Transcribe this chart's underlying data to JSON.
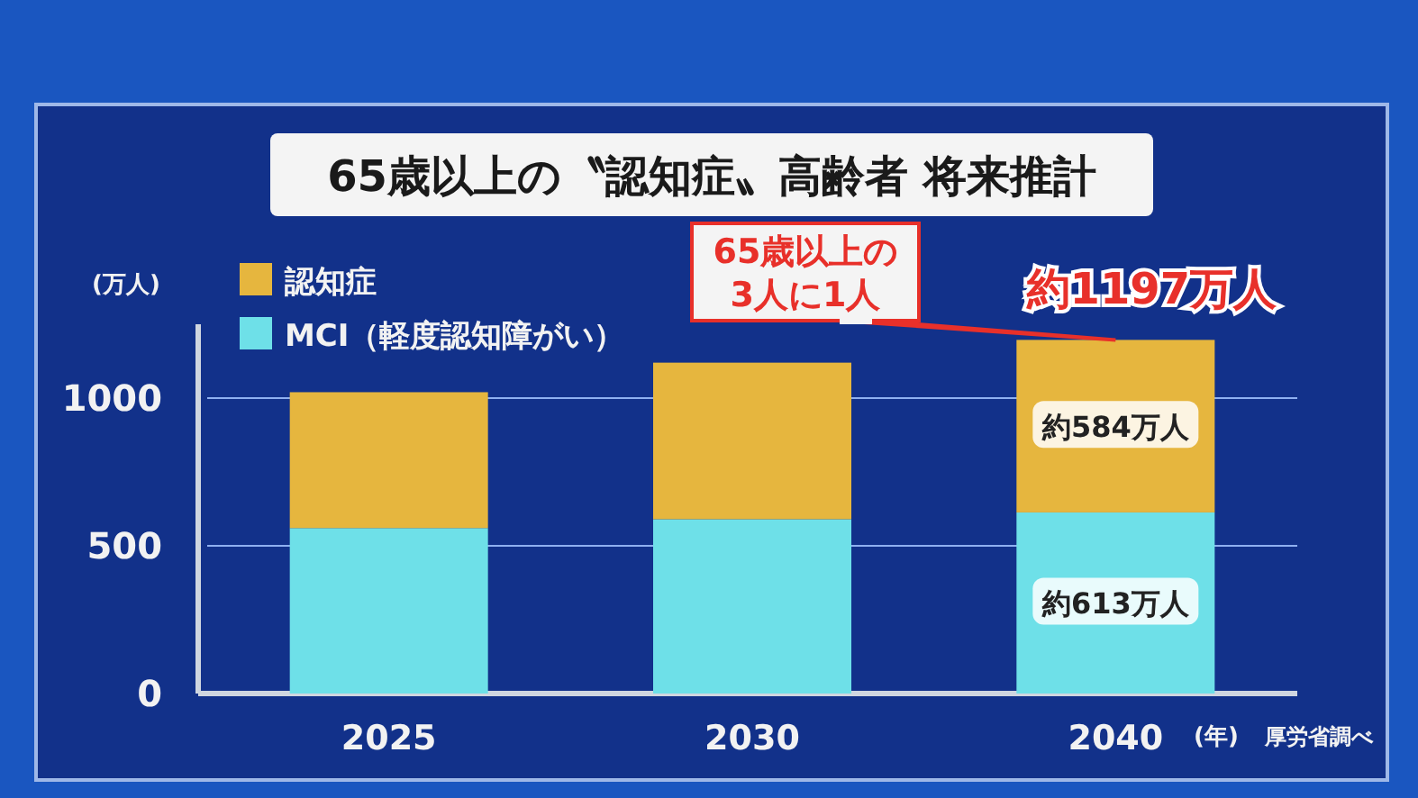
{
  "chart_data": {
    "type": "bar",
    "title": "65歳以上の〝認知症〟高齢者 将来推計",
    "categories": [
      "2025",
      "2030",
      "2040"
    ],
    "stacked": true,
    "series": [
      {
        "name": "MCI（軽度認知障がい）",
        "color": "#6ee0e8",
        "values": [
          560,
          590,
          613
        ],
        "value_labels": [
          null,
          null,
          "約613万人"
        ]
      },
      {
        "name": "認知症",
        "color": "#e6b63e",
        "values": [
          460,
          530,
          584
        ],
        "value_labels": [
          null,
          null,
          "約584万人"
        ]
      }
    ],
    "totals": [
      null,
      null,
      "約1197万人"
    ],
    "ylim": [
      0,
      1250
    ],
    "yticks": [
      0,
      500,
      1000
    ],
    "ylabel": "(万人)",
    "xlabel": "(年)",
    "grid": "y",
    "legend": "top left",
    "annotations": [
      {
        "text": "65歳以上の\n3人に1人",
        "x": "2040",
        "y": 1197
      },
      "厚労省調べ"
    ]
  }
}
